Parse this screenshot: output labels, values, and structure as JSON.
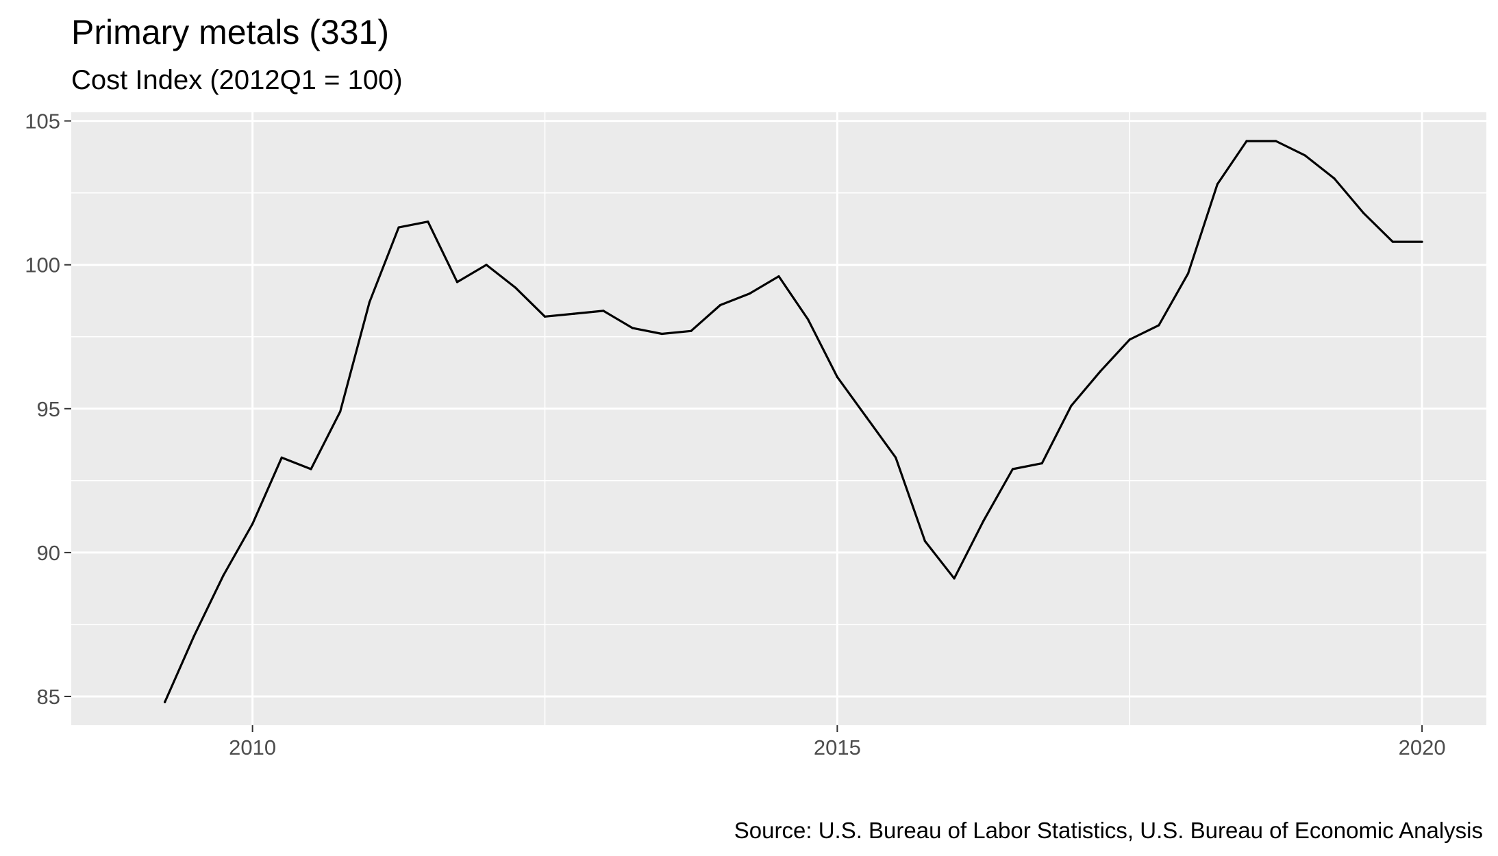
{
  "chart_data": {
    "type": "line",
    "title": "Primary metals (331)",
    "subtitle": "Cost Index (2012Q1 = 100)",
    "caption": "Source: U.S. Bureau of Labor Statistics, U.S. Bureau of Economic Analysis",
    "xlabel": "",
    "ylabel": "",
    "xlim": [
      2008.45,
      2020.55
    ],
    "ylim": [
      84.0,
      105.3
    ],
    "x_ticks": [
      {
        "value": 2010,
        "label": "2010"
      },
      {
        "value": 2015,
        "label": "2015"
      },
      {
        "value": 2020,
        "label": "2020"
      }
    ],
    "y_ticks": [
      {
        "value": 85,
        "label": "85"
      },
      {
        "value": 90,
        "label": "90"
      },
      {
        "value": 95,
        "label": "95"
      },
      {
        "value": 100,
        "label": "100"
      },
      {
        "value": 105,
        "label": "105"
      }
    ],
    "x_minor_ticks": [
      2007.5,
      2012.5,
      2017.5
    ],
    "y_minor_ticks": [
      87.5,
      92.5,
      97.5,
      102.5
    ],
    "grid": true,
    "legend": "none",
    "colors": {
      "panel_background": "#ebebeb",
      "grid": "#ffffff",
      "line": "#000000",
      "tick_label": "#4d4d4d",
      "tick_mark": "#333333"
    },
    "series": [
      {
        "x": [
          2009.25,
          2009.5,
          2009.75,
          2010.0,
          2010.25,
          2010.5,
          2010.75,
          2011.0,
          2011.25,
          2011.5,
          2011.75,
          2012.0,
          2012.25,
          2012.5,
          2012.75,
          2013.0,
          2013.25,
          2013.5,
          2013.75,
          2014.0,
          2014.25,
          2014.5,
          2014.75,
          2015.0,
          2015.25,
          2015.5,
          2015.75,
          2016.0,
          2016.25,
          2016.5,
          2016.75,
          2017.0,
          2017.25,
          2017.5,
          2017.75,
          2018.0,
          2018.25,
          2018.5,
          2018.75,
          2019.0,
          2019.25,
          2019.5,
          2019.75,
          2020.0
        ],
        "values": [
          84.8,
          87.1,
          89.2,
          91.0,
          93.3,
          92.9,
          94.9,
          98.7,
          101.3,
          101.5,
          99.4,
          100.0,
          99.2,
          98.2,
          98.3,
          98.4,
          97.8,
          97.6,
          97.7,
          98.6,
          99.0,
          99.6,
          98.1,
          96.1,
          94.7,
          93.3,
          90.4,
          89.1,
          91.1,
          92.9,
          93.1,
          95.1,
          96.3,
          97.4,
          97.9,
          99.7,
          102.8,
          104.3,
          104.3,
          103.8,
          103.0,
          101.8,
          100.8,
          100.8
        ]
      }
    ]
  }
}
